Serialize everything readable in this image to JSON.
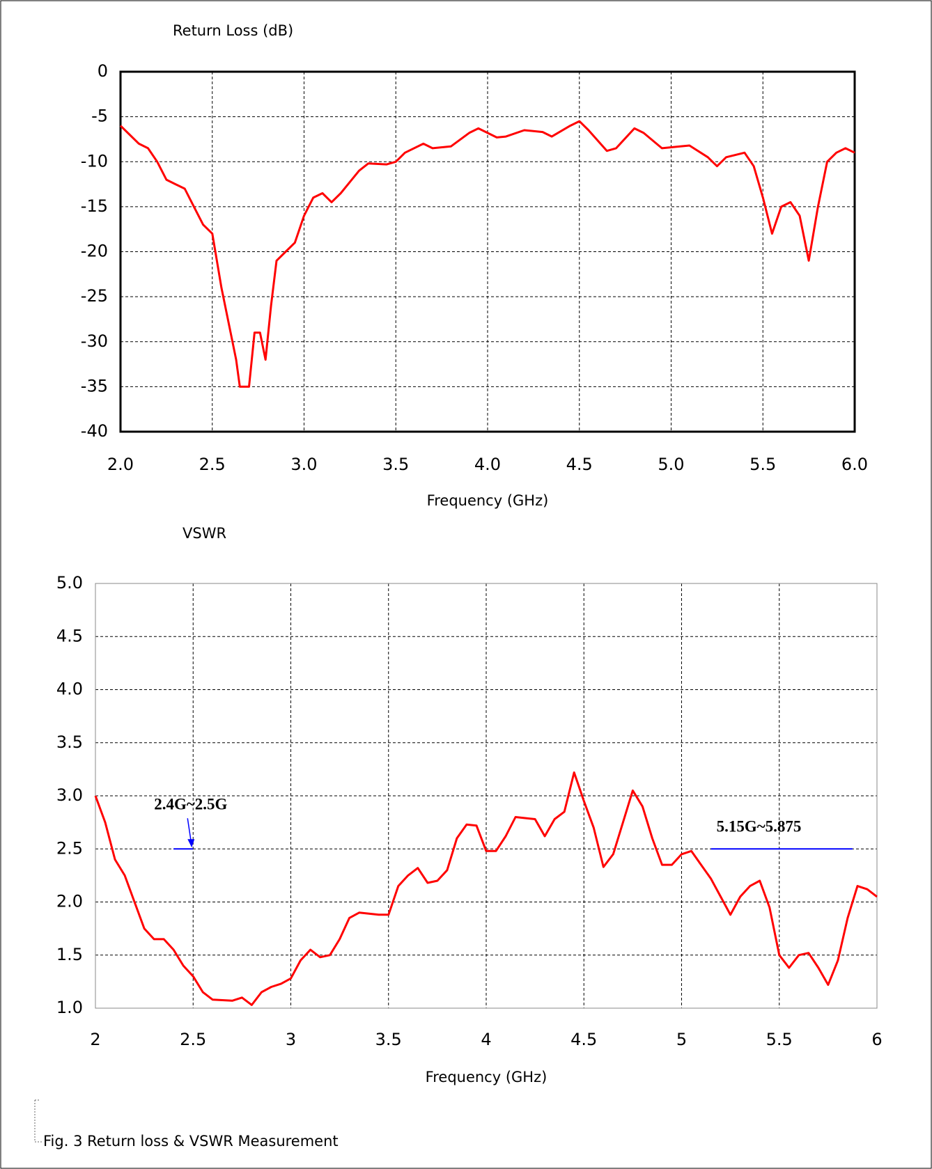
{
  "chart_data": [
    {
      "type": "line",
      "title": "Return Loss (dB)",
      "x_label": "Frequency (GHz)",
      "x": [
        2.0,
        2.05,
        2.1,
        2.15,
        2.2,
        2.25,
        2.3,
        2.35,
        2.4,
        2.45,
        2.5,
        2.55,
        2.6,
        2.63,
        2.65,
        2.7,
        2.73,
        2.76,
        2.79,
        2.82,
        2.85,
        2.9,
        2.95,
        3.0,
        3.05,
        3.1,
        3.15,
        3.2,
        3.3,
        3.35,
        3.45,
        3.5,
        3.55,
        3.65,
        3.7,
        3.8,
        3.9,
        3.95,
        4.0,
        4.05,
        4.1,
        4.2,
        4.3,
        4.35,
        4.45,
        4.5,
        4.55,
        4.65,
        4.7,
        4.8,
        4.85,
        4.95,
        5.05,
        5.1,
        5.2,
        5.25,
        5.3,
        5.4,
        5.45,
        5.5,
        5.55,
        5.6,
        5.65,
        5.7,
        5.75,
        5.8,
        5.85,
        5.9,
        5.95,
        6.0
      ],
      "series": [
        {
          "color": "#ff0000",
          "values": [
            -6,
            -7,
            -8,
            -8.5,
            -10,
            -12,
            -12.5,
            -13,
            -15,
            -17,
            -18,
            -24,
            -29,
            -32,
            -35,
            -35,
            -29,
            -29,
            -32,
            -26,
            -21,
            -20,
            -19,
            -16,
            -14,
            -13.5,
            -14.5,
            -13.5,
            -11,
            -10.2,
            -10.3,
            -10,
            -9,
            -8,
            -8.5,
            -8.3,
            -6.8,
            -6.3,
            -6.8,
            -7.3,
            -7.2,
            -6.5,
            -6.7,
            -7.2,
            -6,
            -5.5,
            -6.5,
            -8.8,
            -8.5,
            -6.3,
            -6.8,
            -8.5,
            -8.3,
            -8.2,
            -9.5,
            -10.5,
            -9.5,
            -9,
            -10.5,
            -14,
            -18,
            -15,
            -14.5,
            -16,
            -21,
            -15,
            -10,
            -9,
            -8.5,
            -9
          ]
        }
      ],
      "xlim": [
        2,
        6
      ],
      "xticks": [
        {
          "value": 2,
          "label": "2.0"
        },
        2.5,
        {
          "value": 3,
          "label": "3.0"
        },
        3.5,
        {
          "value": 4,
          "label": "4.0"
        },
        4.5,
        {
          "value": 5,
          "label": "5.0"
        },
        5.5,
        {
          "value": 6,
          "label": "6.0"
        }
      ],
      "ylim": [
        -40,
        0
      ],
      "yticks": [
        0,
        -5,
        -10,
        -15,
        -20,
        -25,
        -30,
        -35,
        -40
      ],
      "grid": true
    },
    {
      "type": "line",
      "title": "VSWR",
      "x_label": "Frequency (GHz)",
      "x": [
        2.0,
        2.05,
        2.1,
        2.15,
        2.2,
        2.25,
        2.3,
        2.35,
        2.4,
        2.45,
        2.5,
        2.55,
        2.6,
        2.7,
        2.75,
        2.8,
        2.85,
        2.9,
        2.95,
        3.0,
        3.05,
        3.1,
        3.15,
        3.2,
        3.25,
        3.3,
        3.35,
        3.45,
        3.5,
        3.55,
        3.6,
        3.65,
        3.7,
        3.75,
        3.8,
        3.85,
        3.9,
        3.95,
        4.0,
        4.05,
        4.1,
        4.15,
        4.25,
        4.3,
        4.35,
        4.4,
        4.45,
        4.5,
        4.55,
        4.6,
        4.65,
        4.7,
        4.75,
        4.8,
        4.85,
        4.9,
        4.95,
        5.0,
        5.05,
        5.1,
        5.15,
        5.2,
        5.25,
        5.3,
        5.35,
        5.4,
        5.45,
        5.5,
        5.55,
        5.6,
        5.65,
        5.7,
        5.75,
        5.8,
        5.85,
        5.9,
        5.95,
        6.0
      ],
      "series": [
        {
          "color": "#ff0000",
          "values": [
            3.0,
            2.75,
            2.4,
            2.25,
            2.0,
            1.75,
            1.65,
            1.65,
            1.55,
            1.4,
            1.3,
            1.15,
            1.08,
            1.07,
            1.1,
            1.03,
            1.15,
            1.2,
            1.23,
            1.28,
            1.45,
            1.55,
            1.48,
            1.5,
            1.65,
            1.85,
            1.9,
            1.88,
            1.88,
            2.15,
            2.25,
            2.32,
            2.18,
            2.2,
            2.3,
            2.6,
            2.73,
            2.72,
            2.48,
            2.48,
            2.62,
            2.8,
            2.78,
            2.62,
            2.78,
            2.85,
            3.22,
            2.95,
            2.7,
            2.33,
            2.45,
            2.75,
            3.05,
            2.9,
            2.6,
            2.35,
            2.35,
            2.45,
            2.48,
            2.35,
            2.22,
            2.05,
            1.88,
            2.05,
            2.15,
            2.2,
            1.95,
            1.5,
            1.38,
            1.5,
            1.52,
            1.38,
            1.22,
            1.45,
            1.85,
            2.15,
            2.12,
            2.05
          ]
        }
      ],
      "xlim": [
        2,
        6
      ],
      "xticks": [
        2,
        2.5,
        3,
        3.5,
        4,
        4.5,
        5,
        5.5,
        6
      ],
      "ylim": [
        1,
        5
      ],
      "yticks": [
        {
          "value": 1,
          "label": "1.0"
        },
        1.5,
        {
          "value": 2,
          "label": "2.0"
        },
        2.5,
        {
          "value": 3,
          "label": "3.0"
        },
        3.5,
        {
          "value": 4,
          "label": "4.0"
        },
        4.5,
        {
          "value": 5,
          "label": "5.0"
        }
      ],
      "grid": true,
      "annotations": [
        {
          "text": "2.4G~2.5G",
          "x": [
            2.4,
            2.5
          ],
          "y": 2.5,
          "color": "#0000ff",
          "arrow": true
        },
        {
          "text": "5.15G~5.875",
          "x": [
            5.15,
            5.875
          ],
          "y": 2.5,
          "color": "#0000ff",
          "arrow": false
        }
      ]
    }
  ],
  "caption": "Fig. 3   Return loss & VSWR Measurement"
}
